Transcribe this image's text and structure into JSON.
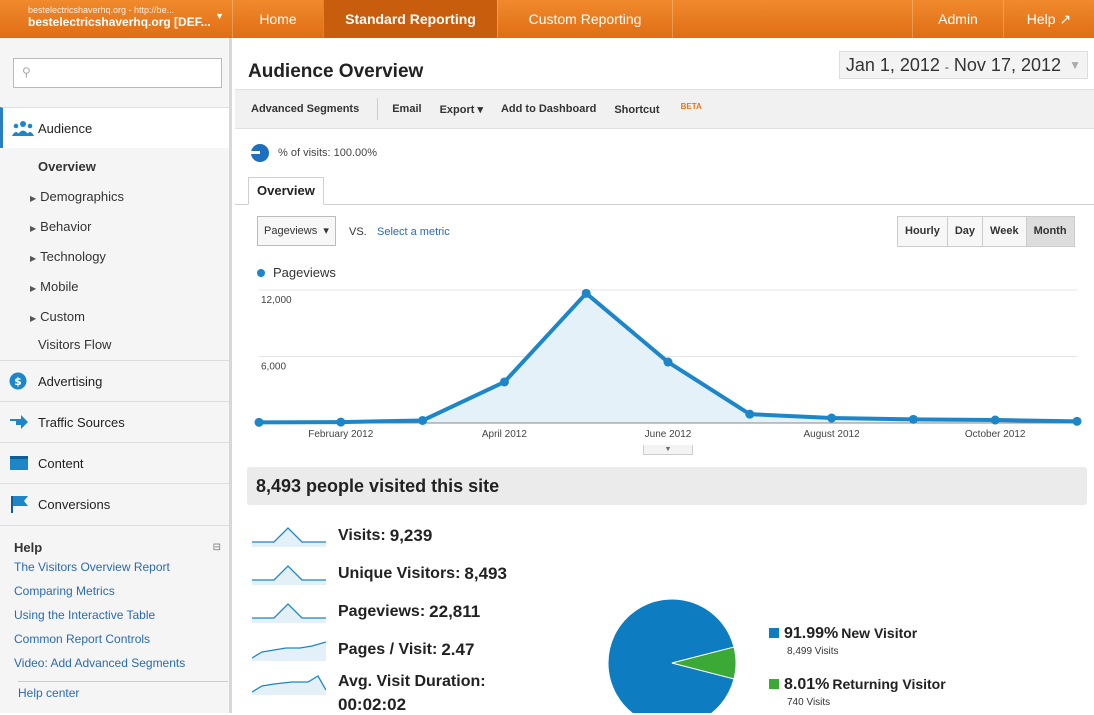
{
  "account": {
    "url": "bestelectricshaverhq.org - http://be...",
    "name": "bestelectricshaverhq.org [DEF..."
  },
  "nav": {
    "home": "Home",
    "standard": "Standard Reporting",
    "custom": "Custom Reporting",
    "admin": "Admin",
    "help": "Help ↗"
  },
  "sidebar": {
    "search_placeholder": "",
    "audience": "Audience",
    "audience_items": [
      "Overview",
      "Demographics",
      "Behavior",
      "Technology",
      "Mobile",
      "Custom",
      "Visitors Flow"
    ],
    "advertising": "Advertising",
    "traffic": "Traffic Sources",
    "content": "Content",
    "conversions": "Conversions",
    "help_title": "Help",
    "help_links": [
      "The Visitors Overview Report",
      "Comparing Metrics",
      "Using the Interactive Table",
      "Common Report Controls",
      "Video: Add Advanced Segments"
    ],
    "help_center": "Help center"
  },
  "main": {
    "title": "Audience Overview",
    "date_start": "Jan 1, 2012",
    "date_sep": "-",
    "date_end": "Nov 17, 2012",
    "toolbar": {
      "segments": "Advanced Segments",
      "email": "Email",
      "export": "Export ▾",
      "dashboard": "Add to Dashboard",
      "shortcut": "Shortcut",
      "beta": "BETA"
    },
    "pct_visits": "% of visits: 100.00%",
    "tab": "Overview",
    "metric": "Pageviews",
    "vs": "VS.",
    "select_metric": "Select a metric",
    "granularity": [
      "Hourly",
      "Day",
      "Week",
      "Month"
    ],
    "legend": "Pageviews",
    "visited": "8,493 people visited this site",
    "metrics": [
      {
        "label": "Visits:",
        "value": "9,239"
      },
      {
        "label": "Unique Visitors:",
        "value": "8,493"
      },
      {
        "label": "Pageviews:",
        "value": "22,811"
      },
      {
        "label": "Pages / Visit:",
        "value": "2.47"
      },
      {
        "label": "Avg. Visit Duration:",
        "value": "00:02:02"
      }
    ],
    "pie": [
      {
        "pct": "91.99%",
        "label": "New Visitor",
        "visits": "8,499 Visits",
        "color": "#0d7cc1"
      },
      {
        "pct": "8.01%",
        "label": "Returning Visitor",
        "visits": "740 Visits",
        "color": "#3aa935"
      }
    ]
  },
  "chart_data": {
    "type": "area",
    "series": [
      {
        "name": "Pageviews",
        "values": [
          60,
          80,
          230,
          3700,
          11700,
          5500,
          800,
          450,
          330,
          270,
          150
        ]
      }
    ],
    "x": [
      "Jan 2012",
      "Feb 2012",
      "Mar 2012",
      "Apr 2012",
      "May 2012",
      "Jun 2012",
      "Jul 2012",
      "Aug 2012",
      "Sep 2012",
      "Oct 2012",
      "Nov 2012"
    ],
    "tick_labels": [
      "February 2012",
      "April 2012",
      "June 2012",
      "August 2012",
      "October 2012"
    ],
    "y_ticks": [
      "12,000",
      "6,000"
    ],
    "ylim": [
      0,
      12000
    ],
    "color": "#1c86c8"
  }
}
